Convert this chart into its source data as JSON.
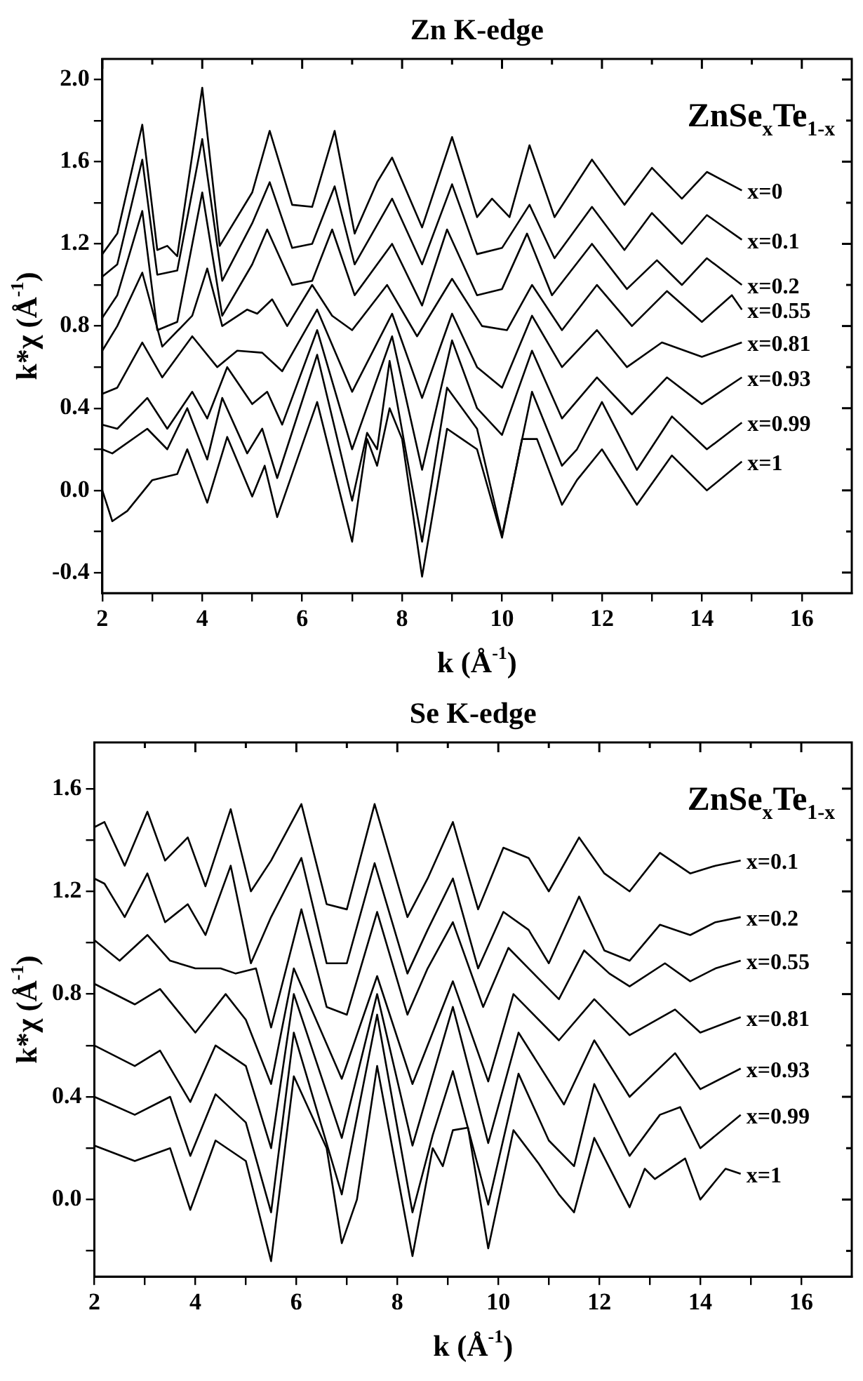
{
  "chart_data": [
    {
      "type": "line",
      "title": "Zn K-edge",
      "xlabel": "k (Å$^{-1}$)",
      "ylabel": "k*χ (Å$^{-1}$)",
      "annotations": [
        "ZnSe$_{x}$Te$_{1-x}$"
      ],
      "legend": "right",
      "marker": "none",
      "line_style": "solid",
      "xlim": [
        2,
        17
      ],
      "xticks": [
        2,
        {
          "value": 3,
          "label": null
        },
        4,
        {
          "value": 5,
          "label": null
        },
        6,
        {
          "value": 7,
          "label": null
        },
        8,
        {
          "value": 9,
          "label": null
        },
        10,
        {
          "value": 11,
          "label": null
        },
        12,
        {
          "value": 13,
          "label": null
        },
        14,
        {
          "value": 15,
          "label": null
        },
        16
      ],
      "ylim": [
        -0.5,
        2.1
      ],
      "yticks": [
        {
          "value": -0.4,
          "label": "-0.4"
        },
        {
          "value": -0.2,
          "label": null
        },
        {
          "value": 0,
          "label": "0.0"
        },
        {
          "value": 0.2,
          "label": null
        },
        {
          "value": 0.4,
          "label": "0.4"
        },
        {
          "value": 0.6,
          "label": null
        },
        {
          "value": 0.8,
          "label": "0.8"
        },
        {
          "value": 1,
          "label": null
        },
        {
          "value": 1.2,
          "label": "1.2"
        },
        {
          "value": 1.4,
          "label": null
        },
        {
          "value": 1.6,
          "label": "1.6"
        },
        {
          "value": 1.8,
          "label": null
        },
        {
          "value": 2,
          "label": "2.0"
        }
      ],
      "series": [
        {
          "name": "x=0",
          "color": "#000000",
          "x": [
            2,
            2.3,
            2.8,
            3.1,
            3.3,
            3.5,
            4.0,
            4.35,
            5.0,
            5.35,
            5.8,
            6.2,
            6.65,
            7.05,
            7.5,
            7.8,
            8.4,
            9.0,
            9.5,
            9.8,
            10.15,
            10.55,
            11.05,
            11.8,
            12.45,
            13.0,
            13.6,
            14.1,
            14.8
          ],
          "values": [
            1.15,
            1.25,
            1.78,
            1.17,
            1.19,
            1.14,
            1.96,
            1.19,
            1.45,
            1.75,
            1.39,
            1.38,
            1.75,
            1.25,
            1.5,
            1.62,
            1.28,
            1.72,
            1.33,
            1.42,
            1.33,
            1.68,
            1.33,
            1.61,
            1.39,
            1.57,
            1.42,
            1.55,
            1.46
          ]
        },
        {
          "name": "x=0.1",
          "color": "#000000",
          "x": [
            2,
            2.3,
            2.8,
            3.1,
            3.5,
            4.0,
            4.4,
            5.0,
            5.35,
            5.8,
            6.2,
            6.65,
            7.05,
            7.8,
            8.4,
            9.0,
            9.5,
            10.0,
            10.55,
            11.05,
            11.8,
            12.45,
            13.0,
            13.6,
            14.1,
            14.8
          ],
          "values": [
            1.04,
            1.1,
            1.61,
            1.05,
            1.07,
            1.71,
            1.02,
            1.3,
            1.5,
            1.18,
            1.2,
            1.48,
            1.1,
            1.42,
            1.1,
            1.49,
            1.15,
            1.18,
            1.39,
            1.13,
            1.38,
            1.17,
            1.35,
            1.2,
            1.34,
            1.22
          ]
        },
        {
          "name": "x=0.2",
          "color": "#000000",
          "x": [
            2,
            2.3,
            2.8,
            3.1,
            3.5,
            4.0,
            4.4,
            5.0,
            5.3,
            5.8,
            6.2,
            6.6,
            7.05,
            7.8,
            8.4,
            8.9,
            9.5,
            10.0,
            10.5,
            11.0,
            11.8,
            12.5,
            13.1,
            13.6,
            14.1,
            14.8
          ],
          "values": [
            0.84,
            0.95,
            1.36,
            0.78,
            0.82,
            1.45,
            0.85,
            1.1,
            1.27,
            1.0,
            1.02,
            1.27,
            0.95,
            1.2,
            0.9,
            1.27,
            0.95,
            0.98,
            1.25,
            0.95,
            1.2,
            0.98,
            1.12,
            1.0,
            1.13,
            1.0
          ]
        },
        {
          "name": "x=0.55",
          "color": "#000000",
          "x": [
            2,
            2.3,
            2.8,
            3.2,
            3.8,
            4.1,
            4.4,
            4.9,
            5.1,
            5.4,
            5.7,
            6.2,
            6.6,
            7.0,
            7.7,
            8.3,
            9.0,
            9.6,
            10.1,
            10.6,
            11.2,
            11.9,
            12.6,
            13.3,
            14.0,
            14.6,
            14.8
          ],
          "values": [
            0.68,
            0.8,
            1.06,
            0.7,
            0.85,
            1.08,
            0.8,
            0.88,
            0.86,
            0.93,
            0.8,
            1.0,
            0.85,
            0.78,
            1.0,
            0.75,
            1.03,
            0.8,
            0.78,
            1.0,
            0.78,
            1.0,
            0.8,
            0.97,
            0.82,
            0.95,
            0.88
          ]
        },
        {
          "name": "x=0.81",
          "color": "#000000",
          "x": [
            2,
            2.3,
            2.8,
            3.2,
            3.8,
            4.3,
            4.7,
            5.2,
            5.6,
            6.3,
            7.0,
            7.8,
            8.4,
            9.0,
            9.5,
            10.0,
            10.6,
            11.2,
            11.9,
            12.5,
            13.2,
            14.0,
            14.8
          ],
          "values": [
            0.47,
            0.5,
            0.72,
            0.55,
            0.75,
            0.6,
            0.68,
            0.67,
            0.58,
            0.88,
            0.48,
            0.86,
            0.45,
            0.86,
            0.6,
            0.5,
            0.85,
            0.6,
            0.78,
            0.6,
            0.72,
            0.65,
            0.72
          ]
        },
        {
          "name": "x=0.93",
          "color": "#000000",
          "x": [
            2,
            2.3,
            2.9,
            3.3,
            3.8,
            4.1,
            4.5,
            5.0,
            5.3,
            5.6,
            6.3,
            7.0,
            7.8,
            8.4,
            9.0,
            9.5,
            10.0,
            10.6,
            11.2,
            11.9,
            12.6,
            13.3,
            14.0,
            14.8
          ],
          "values": [
            0.32,
            0.3,
            0.45,
            0.3,
            0.48,
            0.35,
            0.6,
            0.42,
            0.48,
            0.32,
            0.78,
            0.2,
            0.75,
            0.1,
            0.73,
            0.4,
            0.27,
            0.68,
            0.35,
            0.55,
            0.37,
            0.55,
            0.42,
            0.55
          ]
        },
        {
          "name": "x=0.99",
          "color": "#000000",
          "x": [
            2,
            2.2,
            2.9,
            3.3,
            3.7,
            4.1,
            4.4,
            4.9,
            5.2,
            5.5,
            6.3,
            7.0,
            7.3,
            7.5,
            7.75,
            8.4,
            8.9,
            9.5,
            10.0,
            10.6,
            11.2,
            11.5,
            12.0,
            12.7,
            13.4,
            14.1,
            14.8
          ],
          "values": [
            0.2,
            0.18,
            0.3,
            0.2,
            0.4,
            0.15,
            0.45,
            0.18,
            0.3,
            0.06,
            0.66,
            -0.05,
            0.28,
            0.2,
            0.63,
            -0.25,
            0.5,
            0.3,
            -0.22,
            0.48,
            0.12,
            0.2,
            0.43,
            0.1,
            0.36,
            0.2,
            0.33
          ]
        },
        {
          "name": "x=1",
          "color": "#000000",
          "x": [
            2,
            2.2,
            2.5,
            3.0,
            3.5,
            3.7,
            4.1,
            4.5,
            5.0,
            5.25,
            5.5,
            6.3,
            7.0,
            7.3,
            7.5,
            7.75,
            8.0,
            8.4,
            8.9,
            9.2,
            9.5,
            10.0,
            10.4,
            10.7,
            11.2,
            11.5,
            12.0,
            12.7,
            13.4,
            14.1,
            14.8
          ],
          "values": [
            0.0,
            -0.15,
            -0.1,
            0.05,
            0.08,
            0.2,
            -0.06,
            0.26,
            -0.03,
            0.12,
            -0.13,
            0.43,
            -0.25,
            0.25,
            0.12,
            0.4,
            0.25,
            -0.42,
            0.3,
            0.25,
            0.2,
            -0.23,
            0.25,
            0.25,
            -0.07,
            0.05,
            0.2,
            -0.07,
            0.17,
            0.0,
            0.14
          ]
        }
      ]
    },
    {
      "type": "line",
      "title": "Se K-edge",
      "xlabel": "k (Å$^{-1}$)",
      "ylabel": "k*χ (Å$^{-1}$)",
      "annotations": [
        "ZnSe$_{x}$Te$_{1-x}$"
      ],
      "legend": "right",
      "marker": "none",
      "line_style": "solid",
      "xlim": [
        2,
        17
      ],
      "xticks": [
        2,
        {
          "value": 3,
          "label": null
        },
        4,
        {
          "value": 5,
          "label": null
        },
        6,
        {
          "value": 7,
          "label": null
        },
        8,
        {
          "value": 9,
          "label": null
        },
        10,
        {
          "value": 11,
          "label": null
        },
        12,
        {
          "value": 13,
          "label": null
        },
        14,
        {
          "value": 15,
          "label": null
        },
        16
      ],
      "ylim": [
        -0.3,
        1.78
      ],
      "yticks": [
        {
          "value": -0.2,
          "label": null
        },
        {
          "value": 0,
          "label": "0.0"
        },
        {
          "value": 0.2,
          "label": null
        },
        {
          "value": 0.4,
          "label": "0.4"
        },
        {
          "value": 0.6,
          "label": null
        },
        {
          "value": 0.8,
          "label": "0.8"
        },
        {
          "value": 1,
          "label": null
        },
        {
          "value": 1.2,
          "label": "1.2"
        },
        {
          "value": 1.4,
          "label": null
        },
        {
          "value": 1.6,
          "label": "1.6"
        }
      ],
      "series": [
        {
          "name": "x=0.1",
          "color": "#000000",
          "x": [
            2,
            2.2,
            2.6,
            3.05,
            3.4,
            3.85,
            4.2,
            4.7,
            5.1,
            5.5,
            6.1,
            6.6,
            7.0,
            7.55,
            8.2,
            8.6,
            9.1,
            9.6,
            10.1,
            10.6,
            11.0,
            11.6,
            12.1,
            12.6,
            13.2,
            13.8,
            14.3,
            14.8
          ],
          "values": [
            1.45,
            1.47,
            1.3,
            1.51,
            1.32,
            1.41,
            1.22,
            1.52,
            1.2,
            1.32,
            1.54,
            1.15,
            1.13,
            1.54,
            1.1,
            1.25,
            1.47,
            1.13,
            1.37,
            1.33,
            1.2,
            1.41,
            1.27,
            1.2,
            1.35,
            1.27,
            1.3,
            1.32
          ]
        },
        {
          "name": "x=0.2",
          "color": "#000000",
          "x": [
            2,
            2.2,
            2.6,
            3.05,
            3.4,
            3.85,
            4.2,
            4.7,
            5.1,
            5.5,
            6.1,
            6.6,
            7.0,
            7.55,
            8.2,
            8.6,
            9.1,
            9.6,
            10.1,
            10.6,
            11.0,
            11.6,
            12.1,
            12.6,
            13.2,
            13.8,
            14.3,
            14.8
          ],
          "values": [
            1.25,
            1.23,
            1.1,
            1.27,
            1.08,
            1.15,
            1.03,
            1.3,
            0.92,
            1.1,
            1.33,
            0.92,
            0.92,
            1.31,
            0.88,
            1.05,
            1.25,
            0.9,
            1.12,
            1.05,
            0.92,
            1.18,
            0.97,
            0.93,
            1.07,
            1.03,
            1.08,
            1.1
          ]
        },
        {
          "name": "x=0.55",
          "color": "#000000",
          "x": [
            2,
            2.5,
            3.05,
            3.5,
            4.0,
            4.5,
            4.8,
            5.2,
            5.5,
            6.1,
            6.6,
            7.0,
            7.6,
            8.2,
            8.6,
            9.1,
            9.7,
            10.2,
            10.6,
            11.2,
            11.7,
            12.2,
            12.6,
            13.3,
            13.8,
            14.3,
            14.8
          ],
          "values": [
            1.01,
            0.93,
            1.03,
            0.93,
            0.9,
            0.9,
            0.88,
            0.9,
            0.67,
            1.13,
            0.75,
            0.72,
            1.12,
            0.72,
            0.9,
            1.08,
            0.75,
            0.98,
            0.9,
            0.78,
            0.97,
            0.88,
            0.83,
            0.92,
            0.85,
            0.9,
            0.93
          ]
        },
        {
          "name": "x=0.81",
          "color": "#000000",
          "x": [
            2,
            2.8,
            3.3,
            4.0,
            4.6,
            5.0,
            5.5,
            5.95,
            6.9,
            7.6,
            8.3,
            9.1,
            9.8,
            10.3,
            11.2,
            11.9,
            12.6,
            13.5,
            14.0,
            14.8
          ],
          "values": [
            0.84,
            0.76,
            0.82,
            0.65,
            0.8,
            0.7,
            0.45,
            0.9,
            0.47,
            0.87,
            0.45,
            0.85,
            0.46,
            0.8,
            0.62,
            0.78,
            0.64,
            0.74,
            0.65,
            0.71
          ]
        },
        {
          "name": "x=0.93",
          "color": "#000000",
          "x": [
            2,
            2.8,
            3.3,
            3.9,
            4.4,
            5.0,
            5.5,
            5.95,
            6.9,
            7.6,
            8.3,
            9.1,
            9.8,
            10.4,
            11.3,
            11.9,
            12.6,
            13.5,
            14.0,
            14.8
          ],
          "values": [
            0.6,
            0.52,
            0.58,
            0.38,
            0.6,
            0.52,
            0.2,
            0.8,
            0.24,
            0.8,
            0.21,
            0.75,
            0.22,
            0.65,
            0.37,
            0.62,
            0.4,
            0.57,
            0.43,
            0.51
          ]
        },
        {
          "name": "x=0.99",
          "color": "#000000",
          "x": [
            2,
            2.8,
            3.5,
            3.9,
            4.4,
            5.0,
            5.5,
            5.95,
            6.9,
            7.6,
            8.3,
            8.7,
            9.1,
            9.8,
            10.4,
            11.0,
            11.5,
            11.9,
            12.6,
            13.2,
            13.6,
            14.0,
            14.8
          ],
          "values": [
            0.4,
            0.33,
            0.4,
            0.17,
            0.41,
            0.3,
            -0.05,
            0.65,
            0.02,
            0.72,
            -0.05,
            0.25,
            0.5,
            -0.02,
            0.49,
            0.23,
            0.13,
            0.45,
            0.17,
            0.33,
            0.36,
            0.2,
            0.33
          ]
        },
        {
          "name": "x=1",
          "color": "#000000",
          "x": [
            2,
            2.8,
            3.5,
            3.9,
            4.4,
            5.0,
            5.5,
            5.95,
            6.6,
            6.9,
            7.2,
            7.6,
            8.3,
            8.7,
            8.9,
            9.1,
            9.4,
            9.8,
            10.3,
            10.8,
            11.2,
            11.5,
            11.9,
            12.6,
            12.9,
            13.1,
            13.7,
            14.0,
            14.5,
            14.8
          ],
          "values": [
            0.21,
            0.15,
            0.2,
            -0.04,
            0.23,
            0.15,
            -0.24,
            0.48,
            0.2,
            -0.17,
            0.0,
            0.52,
            -0.22,
            0.2,
            0.13,
            0.27,
            0.28,
            -0.19,
            0.27,
            0.14,
            0.02,
            -0.05,
            0.24,
            -0.03,
            0.12,
            0.08,
            0.16,
            0.0,
            0.12,
            0.1
          ]
        }
      ]
    }
  ]
}
